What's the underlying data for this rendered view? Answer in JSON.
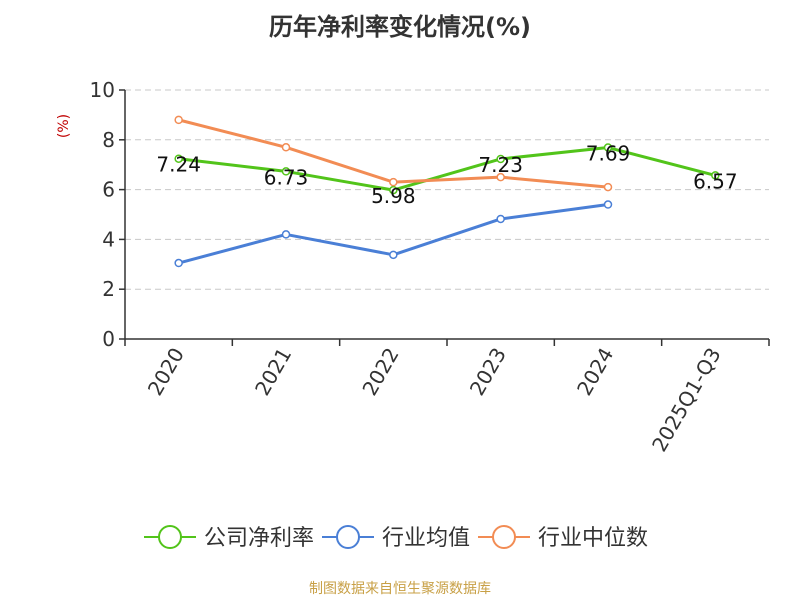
{
  "chart_data": {
    "type": "line",
    "title": "历年净利率变化情况(%)",
    "ylabel": "(%)",
    "xlabel": "",
    "categories": [
      "2020",
      "2021",
      "2022",
      "2023",
      "2024",
      "2025Q1-Q3"
    ],
    "ylim": [
      0,
      10
    ],
    "yticks": [
      0,
      2,
      4,
      6,
      8,
      10
    ],
    "grid": true,
    "legend_position": "bottom",
    "series": [
      {
        "name": "公司净利率",
        "color": "#52c41a",
        "values": [
          7.24,
          6.73,
          5.98,
          7.23,
          7.69,
          6.57
        ],
        "data_labels": [
          "7.24",
          "6.73",
          "5.98",
          "7.23",
          "7.69",
          "6.57"
        ]
      },
      {
        "name": "行业均值",
        "color": "#4a7fd6",
        "values": [
          3.05,
          4.2,
          3.38,
          4.82,
          5.4,
          null
        ]
      },
      {
        "name": "行业中位数",
        "color": "#f28c54",
        "values": [
          8.8,
          7.7,
          6.3,
          6.5,
          6.1,
          null
        ]
      }
    ]
  },
  "footer": {
    "source": "制图数据来自恒生聚源数据库"
  }
}
